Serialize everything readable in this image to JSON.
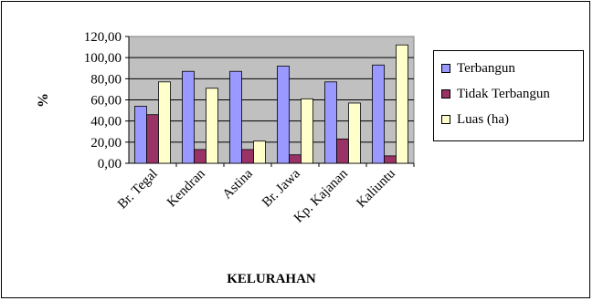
{
  "chart_data": {
    "type": "bar",
    "title": "",
    "xlabel": "KELURAHAN",
    "ylabel": "%",
    "ylim": [
      0,
      120
    ],
    "y_ticks": [
      "0,00",
      "20,00",
      "40,00",
      "60,00",
      "80,00",
      "100,00",
      "120,00"
    ],
    "grid": true,
    "legend_position": "right",
    "categories": [
      "Br. Tegal",
      "Kendran",
      "Astina",
      "Br. Jawa",
      "Kp. Kajanan",
      "Kaliuntu"
    ],
    "series": [
      {
        "name": "Terbangun",
        "color": "#9999ff",
        "values": [
          54,
          87,
          87,
          92,
          77,
          93
        ]
      },
      {
        "name": "Tidak Terbangun",
        "color": "#993366",
        "values": [
          46,
          13,
          13,
          8,
          23,
          7
        ]
      },
      {
        "name": "Luas (ha)",
        "color": "#ffffcc",
        "values": [
          77,
          71,
          21,
          61,
          57,
          112
        ]
      }
    ],
    "plot_background": "#c0c0c0"
  }
}
